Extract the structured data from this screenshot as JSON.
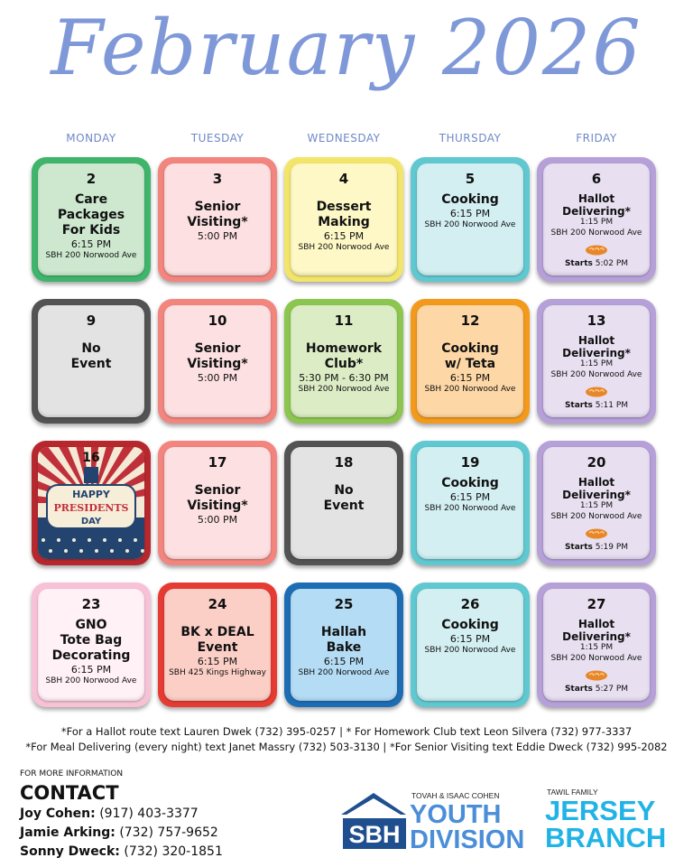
{
  "title": "February 2026",
  "weekdays": [
    "MONDAY",
    "TUESDAY",
    "WEDNESDAY",
    "THURSDAY",
    "FRIDAY"
  ],
  "days": [
    {
      "day": "2",
      "lines": [
        "Care",
        "Packages",
        "For Kids"
      ],
      "time": "6:15 PM",
      "location": "SBH 200 Norwood Ave",
      "border": "#3fb56c",
      "fill": "#cde8cf"
    },
    {
      "day": "3",
      "lines": [
        "Senior",
        "Visiting*"
      ],
      "time": "5:00 PM",
      "border": "#f3857f",
      "fill": "#fde0e2"
    },
    {
      "day": "4",
      "lines": [
        "Dessert",
        "Making"
      ],
      "time": "6:15 PM",
      "location": "SBH 200 Norwood Ave",
      "border": "#f3e56a",
      "fill": "#fdf8c6"
    },
    {
      "day": "5",
      "lines": [
        "Cooking"
      ],
      "time": "6:15 PM",
      "location": "SBH 200 Norwood Ave",
      "border": "#5fc8d0",
      "fill": "#d3eff2"
    },
    {
      "day": "6",
      "lines": [
        "Hallot",
        "Delivering*"
      ],
      "time": "1:15 PM",
      "location": "SBH 200 Norwood Ave",
      "starts_label": "Starts",
      "starts_time": "5:02 PM",
      "border": "#b6a0d8",
      "fill": "#e8e0f1"
    },
    {
      "day": "9",
      "lines": [
        "No",
        "Event"
      ],
      "border": "#535353",
      "fill": "#e3e3e3"
    },
    {
      "day": "10",
      "lines": [
        "Senior",
        "Visiting*"
      ],
      "time": "5:00 PM",
      "border": "#f3857f",
      "fill": "#fde0e2"
    },
    {
      "day": "11",
      "lines": [
        "Homework",
        "Club*"
      ],
      "time": "5:30 PM - 6:30 PM",
      "location": "SBH 200 Norwood Ave",
      "border": "#8cc650",
      "fill": "#dcedc6"
    },
    {
      "day": "12",
      "lines": [
        "Cooking",
        "w/ Teta"
      ],
      "time": "6:15 PM",
      "location": "SBH 200 Norwood Ave",
      "border": "#f39a1d",
      "fill": "#fdd7a6"
    },
    {
      "day": "13",
      "lines": [
        "Hallot",
        "Delivering*"
      ],
      "time": "1:15 PM",
      "location": "SBH 200 Norwood Ave",
      "starts_label": "Starts",
      "starts_time": "5:11 PM",
      "border": "#b6a0d8",
      "fill": "#e8e0f1"
    },
    {
      "day": "16",
      "image": {
        "line1": "HAPPY",
        "line2": "PRESIDENTS",
        "line3": "DAY"
      },
      "border": "#b7282e",
      "fill": "#b7282e"
    },
    {
      "day": "17",
      "lines": [
        "Senior",
        "Visiting*"
      ],
      "time": "5:00 PM",
      "border": "#f3857f",
      "fill": "#fde0e2"
    },
    {
      "day": "18",
      "lines": [
        "No",
        "Event"
      ],
      "border": "#535353",
      "fill": "#e3e3e3"
    },
    {
      "day": "19",
      "lines": [
        "Cooking"
      ],
      "time": "6:15 PM",
      "location": "SBH 200 Norwood Ave",
      "border": "#5fc8d0",
      "fill": "#d3eff2"
    },
    {
      "day": "20",
      "lines": [
        "Hallot",
        "Delivering*"
      ],
      "time": "1:15 PM",
      "location": "SBH 200 Norwood Ave",
      "starts_label": "Starts",
      "starts_time": "5:19 PM",
      "border": "#b6a0d8",
      "fill": "#e8e0f1"
    },
    {
      "day": "23",
      "lines": [
        "GNO",
        "Tote Bag",
        "Decorating"
      ],
      "time": "6:15 PM",
      "location": "SBH 200 Norwood Ave",
      "border": "#f7c2d6",
      "fill": "#fff1f6"
    },
    {
      "day": "24",
      "lines": [
        "BK x DEAL",
        "Event"
      ],
      "time": "6:15 PM",
      "location": "SBH 425 Kings Highway",
      "border": "#e53b33",
      "fill": "#fbcfc6"
    },
    {
      "day": "25",
      "lines": [
        "Hallah",
        "Bake"
      ],
      "time": "6:15 PM",
      "location": "SBH 200 Norwood Ave",
      "border": "#1d6db5",
      "fill": "#b4dcf4"
    },
    {
      "day": "26",
      "lines": [
        "Cooking"
      ],
      "time": "6:15 PM",
      "location": "SBH 200 Norwood Ave",
      "border": "#5fc8d0",
      "fill": "#d3eff2"
    },
    {
      "day": "27",
      "lines": [
        "Hallot",
        "Delivering*"
      ],
      "time": "1:15 PM",
      "location": "SBH 200 Norwood Ave",
      "starts_label": "Starts",
      "starts_time": "5:27 PM",
      "border": "#b6a0d8",
      "fill": "#e8e0f1"
    }
  ],
  "footnotes": [
    "*For a Hallot route text Lauren Dwek (732) 395-0257 | * For Homework Club text Leon Silvera (732) 977-3337",
    "*For Meal Delivering (every night) text Janet Massry (732) 503-3130 | *For Senior Visiting text Eddie Dweck (732) 995-2082"
  ],
  "contact": {
    "heading": "FOR MORE INFORMATION",
    "title": "CONTACT",
    "people": [
      {
        "name": "Joy Cohen:",
        "phone": "(917) 403-3377"
      },
      {
        "name": "Jamie Arking:",
        "phone": "(732) 757-9652"
      },
      {
        "name": "Sonny Dweck:",
        "phone": "(732) 320-1851"
      }
    ]
  },
  "logos": {
    "sbh": "SBH",
    "youth_sponsor": "TOVAH & ISAAC COHEN",
    "youth_line1": "YOUTH",
    "youth_line2": "DIVISION",
    "branch_sponsor": "TAWIL FAMILY",
    "branch_line1": "JERSEY",
    "branch_line2": "BRANCH"
  }
}
